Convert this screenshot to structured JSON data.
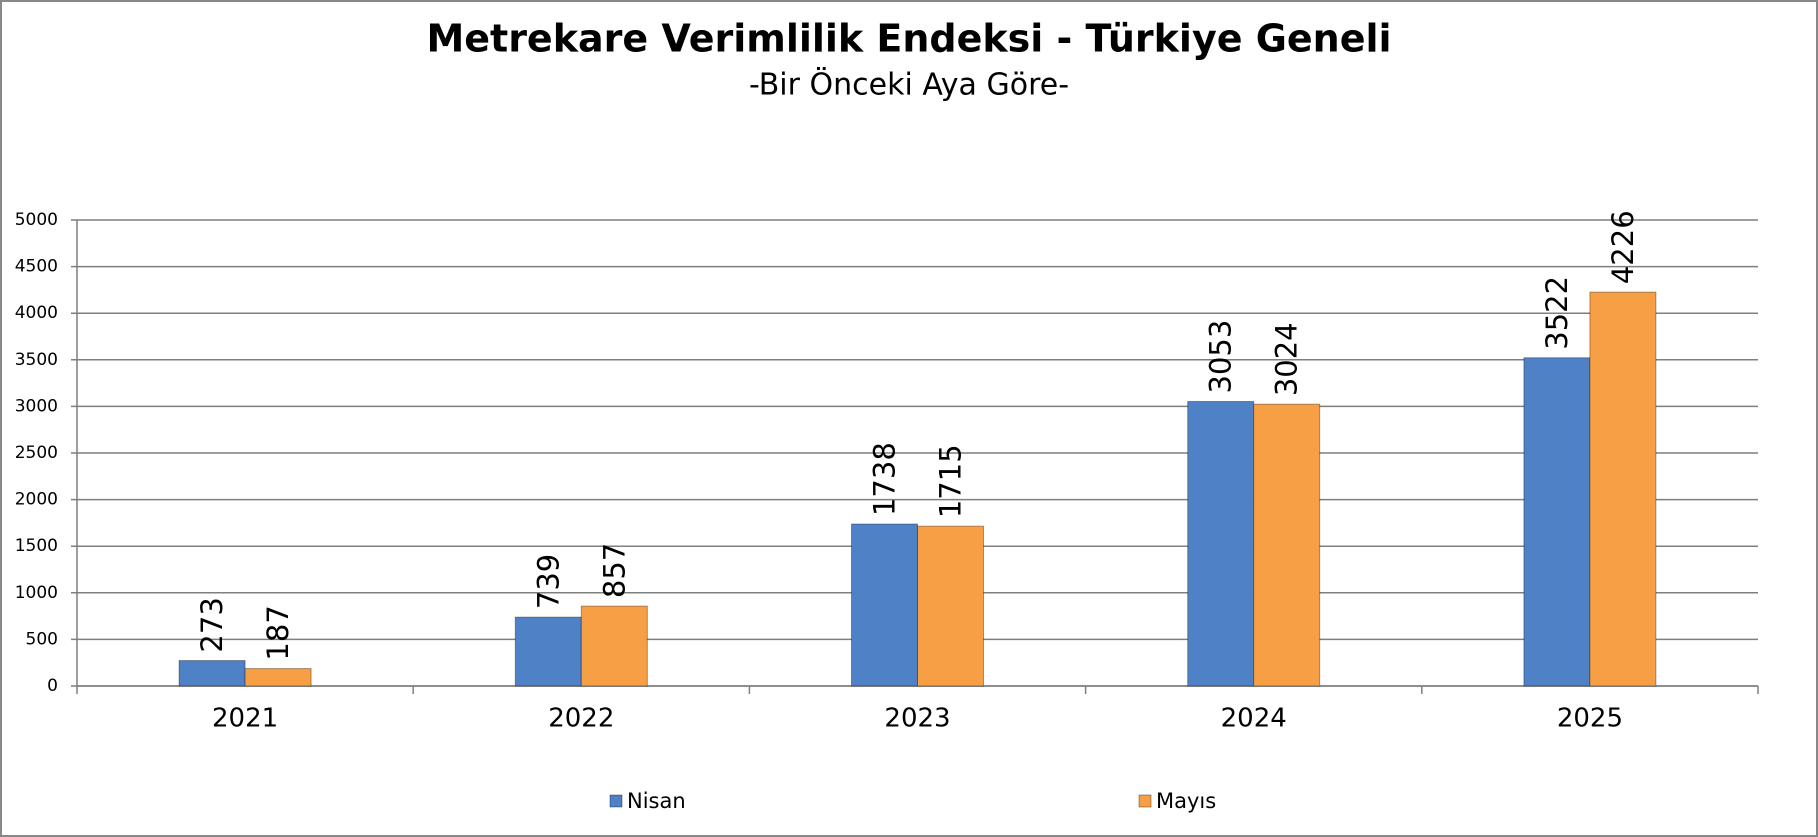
{
  "chart_data": {
    "type": "bar",
    "title": "Metrekare Verimlilik Endeksi - Türkiye Geneli",
    "subtitle": "-Bir Önceki Aya Göre-",
    "categories": [
      "2021",
      "2022",
      "2023",
      "2024",
      "2025"
    ],
    "series": [
      {
        "name": "Nisan",
        "color": "#4f81c7",
        "values": [
          273,
          739,
          1738,
          3053,
          3522
        ]
      },
      {
        "name": "Mayıs",
        "color": "#f79f45",
        "values": [
          187,
          857,
          1715,
          3024,
          4226
        ]
      }
    ],
    "ylim": [
      0,
      5000
    ],
    "yticks": [
      0,
      500,
      1000,
      1500,
      2000,
      2500,
      3000,
      3500,
      4000,
      4500,
      5000
    ],
    "grid": true,
    "legend": "bottom"
  }
}
